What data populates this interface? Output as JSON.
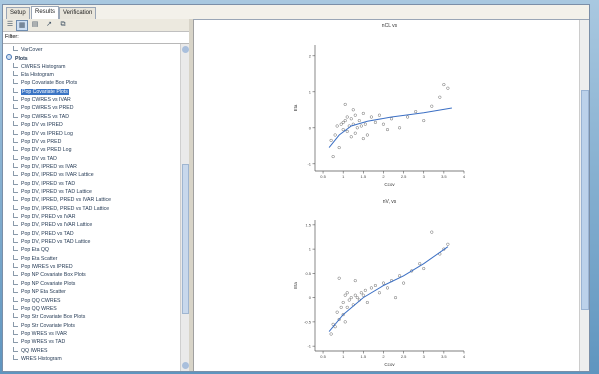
{
  "tabs": [
    {
      "label": "Setup"
    },
    {
      "label": "Results"
    },
    {
      "label": "Verification"
    }
  ],
  "active_tab": "Results",
  "filter": {
    "label": "Filter:"
  },
  "tree": {
    "items": [
      {
        "label": "VarCover",
        "level": 1,
        "type": "item"
      },
      {
        "label": "Plots",
        "level": 0,
        "type": "folder"
      },
      {
        "label": "CWRES Histogram",
        "level": 1,
        "type": "item"
      },
      {
        "label": "Eta Histogram",
        "level": 1,
        "type": "item"
      },
      {
        "label": "Pop Covariate Box Plots",
        "level": 1,
        "type": "item"
      },
      {
        "label": "Pop Covariate Plots",
        "level": 1,
        "type": "item",
        "selected": true
      },
      {
        "label": "Pop CWRES vs IVAR",
        "level": 1,
        "type": "item"
      },
      {
        "label": "Pop CWRES vs PRED",
        "level": 1,
        "type": "item"
      },
      {
        "label": "Pop CWRES vs TAD",
        "level": 1,
        "type": "item"
      },
      {
        "label": "Pop DV vs IPRED",
        "level": 1,
        "type": "item"
      },
      {
        "label": "Pop DV vs IPRED Log",
        "level": 1,
        "type": "item"
      },
      {
        "label": "Pop DV vs PRED",
        "level": 1,
        "type": "item"
      },
      {
        "label": "Pop DV vs PRED Log",
        "level": 1,
        "type": "item"
      },
      {
        "label": "Pop DV vs TAD",
        "level": 1,
        "type": "item"
      },
      {
        "label": "Pop DV, IPRED vs IVAR",
        "level": 1,
        "type": "item"
      },
      {
        "label": "Pop DV, IPRED vs IVAR Lattice",
        "level": 1,
        "type": "item"
      },
      {
        "label": "Pop DV, IPRED vs TAD",
        "level": 1,
        "type": "item"
      },
      {
        "label": "Pop DV, IPRED vs TAD Lattice",
        "level": 1,
        "type": "item"
      },
      {
        "label": "Pop DV, IPRED, PRED vs IVAR Lattice",
        "level": 1,
        "type": "item"
      },
      {
        "label": "Pop DV, IPRED, PRED vs TAD Lattice",
        "level": 1,
        "type": "item"
      },
      {
        "label": "Pop DV, PRED vs IVAR",
        "level": 1,
        "type": "item"
      },
      {
        "label": "Pop DV, PRED vs IVAR Lattice",
        "level": 1,
        "type": "item"
      },
      {
        "label": "Pop DV, PRED vs TAD",
        "level": 1,
        "type": "item"
      },
      {
        "label": "Pop DV, PRED vs TAD Lattice",
        "level": 1,
        "type": "item"
      },
      {
        "label": "Pop Eta QQ",
        "level": 1,
        "type": "item"
      },
      {
        "label": "Pop Eta Scatter",
        "level": 1,
        "type": "item"
      },
      {
        "label": "Pop IWRES vs IPRED",
        "level": 1,
        "type": "item"
      },
      {
        "label": "Pop NP Covariate Box Plots",
        "level": 1,
        "type": "item"
      },
      {
        "label": "Pop NP Covariate Plots",
        "level": 1,
        "type": "item"
      },
      {
        "label": "Pop NP Eta Scatter",
        "level": 1,
        "type": "item"
      },
      {
        "label": "Pop QQ CWRES",
        "level": 1,
        "type": "item"
      },
      {
        "label": "Pop QQ WRES",
        "level": 1,
        "type": "item"
      },
      {
        "label": "Pop Str Covariate Box Plots",
        "level": 1,
        "type": "item"
      },
      {
        "label": "Pop Str Covariate Plots",
        "level": 1,
        "type": "item"
      },
      {
        "label": "Pop WRES vs IVAR",
        "level": 1,
        "type": "item"
      },
      {
        "label": "Pop WRES vs TAD",
        "level": 1,
        "type": "item"
      },
      {
        "label": "QQ IWRES",
        "level": 1,
        "type": "item"
      },
      {
        "label": "WRES Histogram",
        "level": 1,
        "type": "item"
      }
    ]
  },
  "chart_data": [
    {
      "type": "scatter",
      "title": "nCL vs",
      "xlabel": "Ccov",
      "ylabel": "Eta",
      "xlim": [
        0.3,
        4.0
      ],
      "ylim": [
        -1.2,
        2.3
      ],
      "xticks": [
        0.5,
        1,
        1.5,
        2,
        2.5,
        3,
        3.5,
        4
      ],
      "yticks": [
        -1,
        0,
        1,
        2
      ],
      "points": [
        [
          0.7,
          -0.35
        ],
        [
          0.8,
          -0.2
        ],
        [
          0.85,
          0.05
        ],
        [
          0.9,
          -0.55
        ],
        [
          0.95,
          0.1
        ],
        [
          1.0,
          0.15
        ],
        [
          1.0,
          -0.05
        ],
        [
          1.05,
          0.2
        ],
        [
          1.1,
          -0.1
        ],
        [
          1.1,
          0.3
        ],
        [
          1.15,
          0.05
        ],
        [
          1.2,
          0.25
        ],
        [
          1.2,
          -0.25
        ],
        [
          1.25,
          0.1
        ],
        [
          1.3,
          0.35
        ],
        [
          1.3,
          -0.15
        ],
        [
          1.35,
          0.0
        ],
        [
          1.4,
          0.2
        ],
        [
          1.45,
          0.05
        ],
        [
          1.5,
          0.4
        ],
        [
          1.55,
          0.1
        ],
        [
          1.6,
          -0.2
        ],
        [
          1.7,
          0.3
        ],
        [
          1.8,
          0.15
        ],
        [
          1.9,
          0.35
        ],
        [
          2.0,
          0.1
        ],
        [
          2.1,
          -0.05
        ],
        [
          2.2,
          0.25
        ],
        [
          2.4,
          0.0
        ],
        [
          2.6,
          0.3
        ],
        [
          2.8,
          0.45
        ],
        [
          3.0,
          0.2
        ],
        [
          3.2,
          0.6
        ],
        [
          3.4,
          0.85
        ],
        [
          3.5,
          1.2
        ],
        [
          3.6,
          1.1
        ],
        [
          0.75,
          -0.8
        ],
        [
          1.05,
          0.65
        ],
        [
          1.25,
          0.5
        ],
        [
          1.5,
          -0.3
        ]
      ],
      "fit": [
        [
          0.65,
          -0.55
        ],
        [
          0.9,
          -0.2
        ],
        [
          1.2,
          0.05
        ],
        [
          1.6,
          0.18
        ],
        [
          2.2,
          0.3
        ],
        [
          3.0,
          0.42
        ],
        [
          3.7,
          0.55
        ]
      ]
    },
    {
      "type": "scatter",
      "title": "nV, vs",
      "xlabel": "Ccov",
      "ylabel": "Eta",
      "xlim": [
        0.3,
        4.0
      ],
      "ylim": [
        -1.1,
        1.6
      ],
      "xticks": [
        0.5,
        1,
        1.5,
        2,
        2.5,
        3,
        3.5,
        4
      ],
      "yticks": [
        -1,
        -0.5,
        0,
        0.5,
        1,
        1.5
      ],
      "points": [
        [
          0.7,
          -0.75
        ],
        [
          0.75,
          -0.55
        ],
        [
          0.8,
          -0.6
        ],
        [
          0.85,
          -0.3
        ],
        [
          0.9,
          -0.45
        ],
        [
          0.95,
          -0.2
        ],
        [
          1.0,
          -0.1
        ],
        [
          1.0,
          -0.35
        ],
        [
          1.05,
          0.05
        ],
        [
          1.1,
          -0.2
        ],
        [
          1.1,
          0.1
        ],
        [
          1.15,
          -0.05
        ],
        [
          1.2,
          0.0
        ],
        [
          1.25,
          -0.15
        ],
        [
          1.3,
          0.05
        ],
        [
          1.35,
          0.0
        ],
        [
          1.4,
          -0.05
        ],
        [
          1.45,
          0.1
        ],
        [
          1.5,
          0.05
        ],
        [
          1.55,
          0.15
        ],
        [
          1.6,
          -0.1
        ],
        [
          1.7,
          0.2
        ],
        [
          1.8,
          0.25
        ],
        [
          1.9,
          0.1
        ],
        [
          2.0,
          0.3
        ],
        [
          2.1,
          0.2
        ],
        [
          2.2,
          0.35
        ],
        [
          2.4,
          0.45
        ],
        [
          2.5,
          0.3
        ],
        [
          2.7,
          0.55
        ],
        [
          2.9,
          0.7
        ],
        [
          3.0,
          0.6
        ],
        [
          3.2,
          1.35
        ],
        [
          3.4,
          0.9
        ],
        [
          3.5,
          1.0
        ],
        [
          3.6,
          1.1
        ],
        [
          0.9,
          0.4
        ],
        [
          1.3,
          0.35
        ],
        [
          1.05,
          -0.5
        ],
        [
          2.3,
          0.0
        ]
      ],
      "fit": [
        [
          0.65,
          -0.7
        ],
        [
          1.0,
          -0.35
        ],
        [
          1.5,
          0.0
        ],
        [
          2.0,
          0.25
        ],
        [
          2.5,
          0.45
        ],
        [
          3.0,
          0.7
        ],
        [
          3.6,
          1.05
        ]
      ]
    }
  ]
}
